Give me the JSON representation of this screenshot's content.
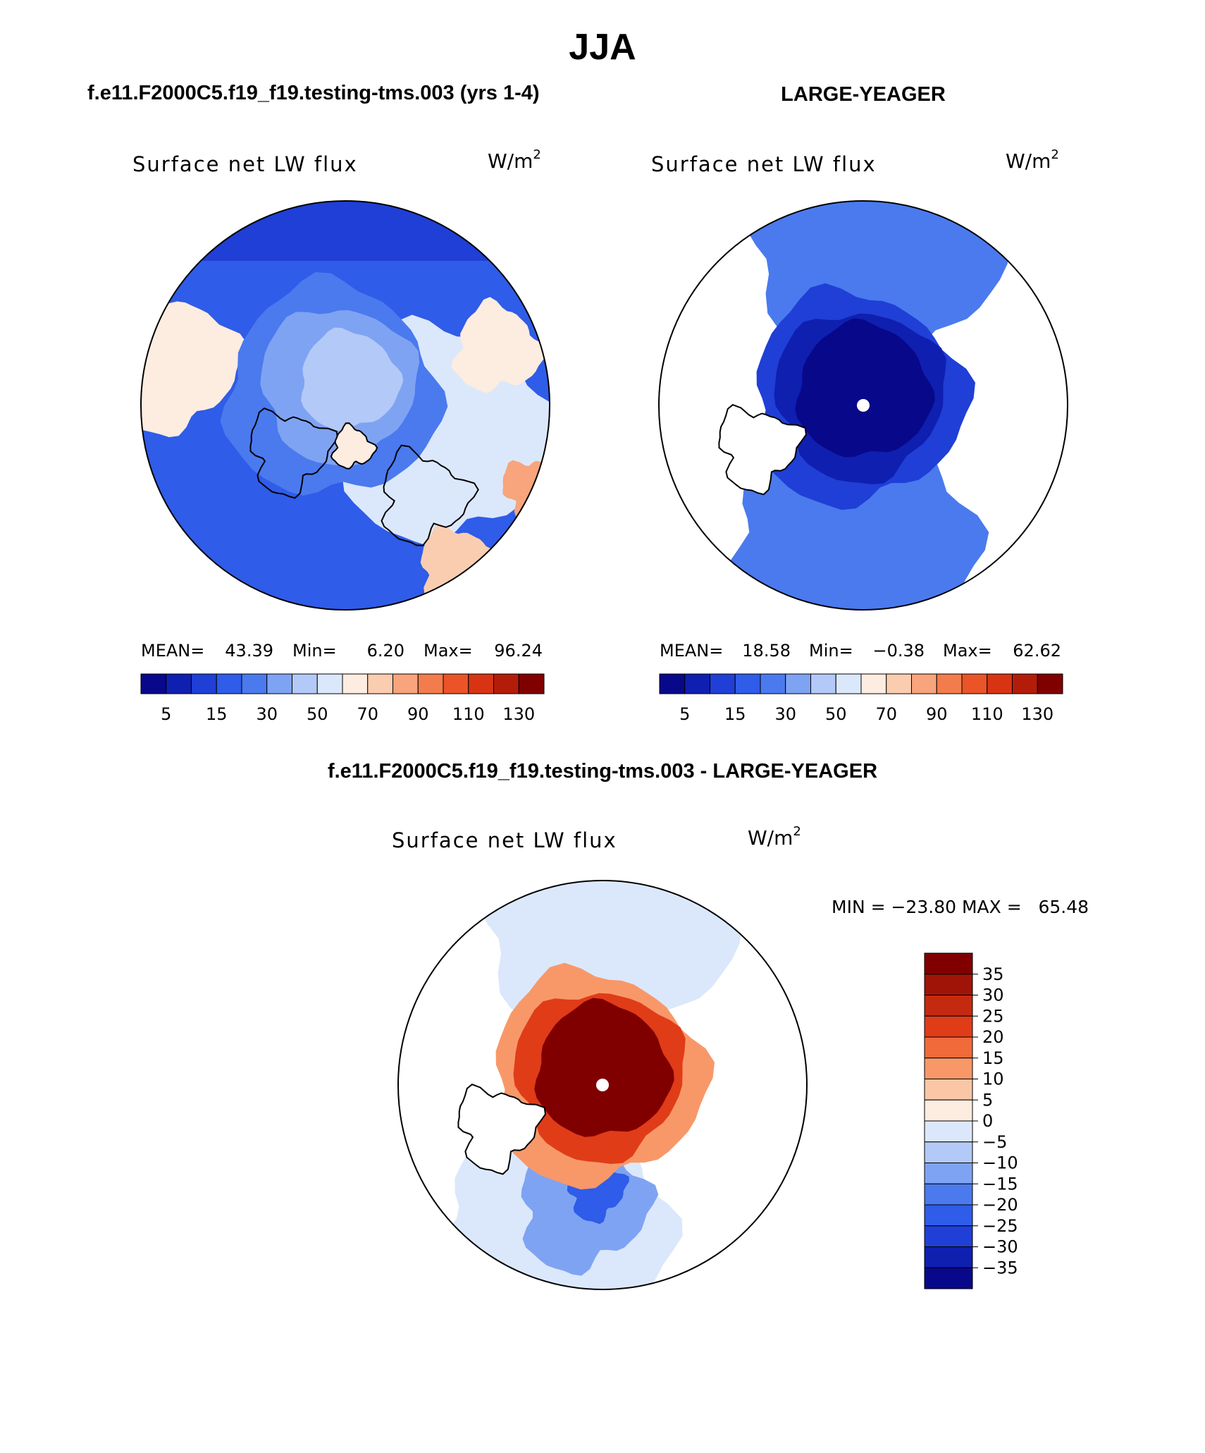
{
  "page_title": "JJA",
  "panel_a": {
    "case_title": "f.e11.F2000C5.f19_f19.testing-tms.003 (yrs 1-4)",
    "variable": "Surface net LW flux",
    "units_base": "W/m",
    "units_exp": "2",
    "stats": {
      "mean_label": "MEAN=",
      "mean": "43.39",
      "min_label": "Min=",
      "min": "6.20",
      "max_label": "Max=",
      "max": "96.24"
    }
  },
  "panel_b": {
    "case_title": "LARGE-YEAGER",
    "variable": "Surface net LW flux",
    "units_base": "W/m",
    "units_exp": "2",
    "stats": {
      "mean_label": "MEAN=",
      "mean": "18.58",
      "min_label": "Min=",
      "min": "−0.38",
      "max_label": "Max=",
      "max": "62.62"
    }
  },
  "panel_c": {
    "case_title": "f.e11.F2000C5.f19_f19.testing-tms.003 - LARGE-YEAGER",
    "variable": "Surface net LW flux",
    "units_base": "W/m",
    "units_exp": "2",
    "minmax": "MIN = −23.80 MAX =   65.48"
  },
  "chart_data": [
    {
      "type": "heatmap",
      "projection": "north-polar-stereographic",
      "title": "Surface net LW flux",
      "units": "W/m2",
      "mean": 43.39,
      "min": 6.2,
      "max": 96.24,
      "colorbar": {
        "orientation": "horizontal",
        "tick_labels": [
          "5",
          "15",
          "30",
          "50",
          "70",
          "90",
          "110",
          "130"
        ],
        "levels": [
          5,
          10,
          15,
          20,
          30,
          40,
          50,
          60,
          70,
          80,
          90,
          100,
          110,
          120,
          130
        ],
        "colors": [
          "#08088a",
          "#0f1fb0",
          "#1f3fd6",
          "#2f5ce8",
          "#4a7aee",
          "#7fa3f3",
          "#b3c9f7",
          "#dbe8fb",
          "#fdece0",
          "#fbcdb0",
          "#f8a47c",
          "#f37c4c",
          "#ea5428",
          "#d83414",
          "#b41c0a",
          "#800000"
        ]
      },
      "field": {
        "pole": "#b3c9f7",
        "interior": "#7fa3f3",
        "ring": "#4a7aee",
        "outer": "#2f5ce8",
        "rim": "#1f3fd6",
        "warm_patches": [
          "#fdece0",
          "#fbcdb0",
          "#f8a47c",
          "#dbe8fb"
        ],
        "land": "#fdece0"
      }
    },
    {
      "type": "heatmap",
      "projection": "north-polar-stereographic",
      "title": "Surface net LW flux",
      "units": "W/m2",
      "mean": 18.58,
      "min": -0.38,
      "max": 62.62,
      "colorbar": {
        "orientation": "horizontal",
        "tick_labels": [
          "5",
          "15",
          "30",
          "50",
          "70",
          "90",
          "110",
          "130"
        ],
        "levels": [
          5,
          10,
          15,
          20,
          30,
          40,
          50,
          60,
          70,
          80,
          90,
          100,
          110,
          120,
          130
        ],
        "colors": [
          "#08088a",
          "#0f1fb0",
          "#1f3fd6",
          "#2f5ce8",
          "#4a7aee",
          "#7fa3f3",
          "#b3c9f7",
          "#dbe8fb",
          "#fdece0",
          "#fbcdb0",
          "#f8a47c",
          "#f37c4c",
          "#ea5428",
          "#d83414",
          "#b41c0a",
          "#800000"
        ]
      },
      "field": {
        "pole": "#08088a",
        "inner": "#0f1fb0",
        "ring": "#1f3fd6",
        "outer": "#4a7aee",
        "rim": "#7fa3f3",
        "missing": "#ffffff"
      }
    },
    {
      "type": "heatmap",
      "projection": "north-polar-stereographic",
      "title": "Surface net LW flux",
      "units": "W/m2",
      "min": -23.8,
      "max": 65.48,
      "colorbar": {
        "orientation": "vertical",
        "tick_labels": [
          "35",
          "30",
          "25",
          "20",
          "15",
          "10",
          "5",
          "0",
          "−5",
          "−10",
          "−15",
          "−20",
          "−25",
          "−30",
          "−35"
        ],
        "levels": [
          35,
          30,
          25,
          20,
          15,
          10,
          5,
          0,
          -5,
          -10,
          -15,
          -20,
          -25,
          -30,
          -35
        ],
        "colors": [
          "#800000",
          "#a01408",
          "#c42a10",
          "#e03c18",
          "#f06a3a",
          "#f89868",
          "#fbc6a6",
          "#fdece0",
          "#dbe8fb",
          "#b3c9f7",
          "#7fa3f3",
          "#4a7aee",
          "#2f5ce8",
          "#1f3fd6",
          "#0f1fb0",
          "#08088a"
        ]
      },
      "field": {
        "pole": "#800000",
        "inner": "#a01408",
        "ring": "#e03c18",
        "outer": "#f89868",
        "cool": "#7fa3f3",
        "cool_deep": "#2f5ce8",
        "pale": "#dbe8fb",
        "missing": "#ffffff"
      }
    }
  ]
}
